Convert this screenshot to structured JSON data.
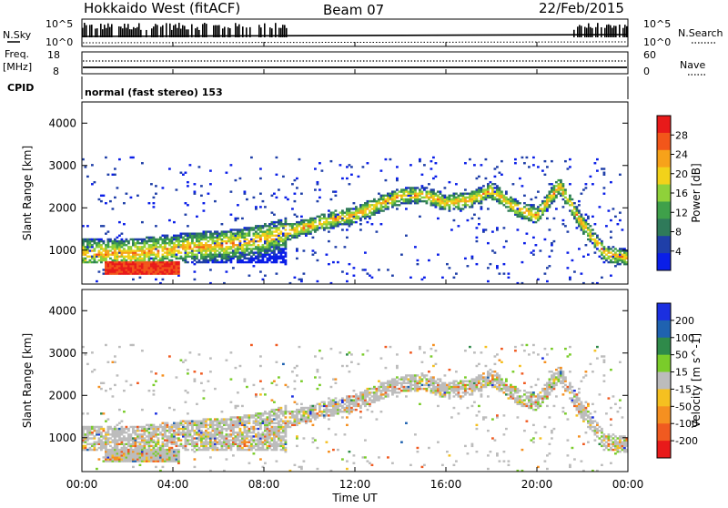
{
  "header": {
    "station": "Hokkaido West (fitACF)",
    "beam": "Beam 07",
    "date": "22/Feb/2015"
  },
  "top_panel": {
    "left_label": "N.Sky",
    "left_ticks": [
      "10^5",
      "10^0"
    ],
    "right_label": "N.Search",
    "right_ticks": [
      "10^5",
      "10^0"
    ]
  },
  "freq_panel": {
    "left_label_1": "Freq.",
    "left_label_2": "[MHz]",
    "left_ticks": [
      "18",
      "8"
    ],
    "right_label": "Nave",
    "right_ticks": [
      "60",
      "0"
    ]
  },
  "cpid_panel": {
    "label": "CPID",
    "text": "normal (fast stereo) 153"
  },
  "colors": {
    "power_scale": [
      "#0a1ee8",
      "#1f3fa8",
      "#2f7a5a",
      "#3fa04a",
      "#8fd13a",
      "#f2d21a",
      "#f7a21a",
      "#f2561a",
      "#e81a1a"
    ],
    "velocity_scale": [
      "#1b2fe0",
      "#1f62b0",
      "#2f8a4a",
      "#7acc2a",
      "#bcbcbc",
      "#f5c020",
      "#f59020",
      "#f05a20",
      "#e81a1a"
    ]
  },
  "chart_data": [
    {
      "type": "heatmap",
      "panel": "power",
      "ylabel": "Slant Range [km]",
      "yticks": [
        "1000",
        "2000",
        "3000",
        "4000"
      ],
      "ylim": [
        200,
        4500
      ],
      "xlim": [
        0,
        24
      ],
      "colorbar_label": "Power [dB]",
      "colorbar_ticks": [
        "4",
        "8",
        "12",
        "16",
        "20",
        "24",
        "28"
      ],
      "colorbar_range": [
        0,
        30
      ],
      "echo_band": {
        "hours": [
          0,
          1,
          2,
          3,
          4,
          5,
          6,
          7,
          8,
          9,
          10,
          11,
          12,
          13,
          14,
          15,
          16,
          17,
          18,
          19,
          20,
          21,
          22,
          23,
          24
        ],
        "center_km": [
          900,
          900,
          900,
          950,
          1000,
          1050,
          1100,
          1150,
          1250,
          1400,
          1550,
          1700,
          1800,
          2050,
          2250,
          2300,
          2100,
          2150,
          2400,
          2000,
          1800,
          2500,
          1600,
          900,
          800
        ]
      },
      "near_range_echo": {
        "start_hour": 1.0,
        "end_hour": 4.3,
        "range_km": [
          380,
          700
        ],
        "power_db": 28
      }
    },
    {
      "type": "heatmap",
      "panel": "velocity",
      "ylabel": "Slant Range [km]",
      "yticks": [
        "1000",
        "2000",
        "3000",
        "4000"
      ],
      "ylim": [
        200,
        4500
      ],
      "xlim": [
        0,
        24
      ],
      "colorbar_label": "Velocity [m s^-1]",
      "colorbar_ticks": [
        "200",
        "100",
        "50",
        "15",
        "-15",
        "-50",
        "-100",
        "-200"
      ],
      "colorbar_range": [
        -250,
        250
      ]
    }
  ],
  "x_axis": {
    "label": "Time UT",
    "ticks": [
      "00:00",
      "04:00",
      "08:00",
      "12:00",
      "16:00",
      "20:00",
      "00:00"
    ]
  }
}
